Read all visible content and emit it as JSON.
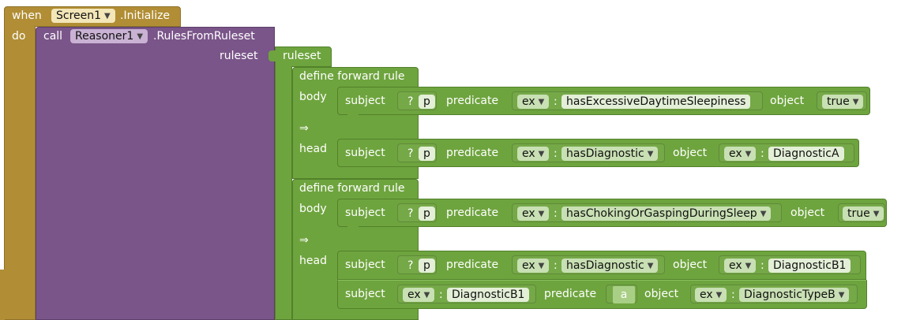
{
  "event": {
    "when_label": "when",
    "component": "Screen1",
    "event_name": ".Initialize",
    "do_label": "do"
  },
  "call": {
    "call_label": "call",
    "component": "Reasoner1",
    "method": ".RulesFromRuleset",
    "arg_label": "ruleset"
  },
  "ruleset": {
    "label": "ruleset"
  },
  "rules": [
    {
      "header": "define forward rule",
      "body_label": "body",
      "arrow": "⇒",
      "head_label": "head",
      "body": [
        {
          "subject_label": "subject",
          "subject_prefix": "?",
          "subject_var": "p",
          "predicate_label": "predicate",
          "pred_ns": "ex",
          "pred_colon": ":",
          "pred_name": "hasExcessiveDaytimeSleepiness",
          "object_label": "object",
          "object_value": "true"
        }
      ],
      "head": [
        {
          "subject_label": "subject",
          "subject_prefix": "?",
          "subject_var": "p",
          "predicate_label": "predicate",
          "pred_ns": "ex",
          "pred_colon": ":",
          "pred_name": "hasDiagnostic",
          "object_label": "object",
          "obj_ns": "ex",
          "obj_colon": ":",
          "obj_name": "DiagnosticA"
        }
      ]
    },
    {
      "header": "define forward rule",
      "body_label": "body",
      "arrow": "⇒",
      "head_label": "head",
      "body": [
        {
          "subject_label": "subject",
          "subject_prefix": "?",
          "subject_var": "p",
          "predicate_label": "predicate",
          "pred_ns": "ex",
          "pred_colon": ":",
          "pred_name": "hasChokingOrGaspingDuringSleep",
          "object_label": "object",
          "object_value": "true"
        }
      ],
      "head": [
        {
          "subject_label": "subject",
          "subject_prefix": "?",
          "subject_var": "p",
          "predicate_label": "predicate",
          "pred_ns": "ex",
          "pred_colon": ":",
          "pred_name": "hasDiagnostic",
          "object_label": "object",
          "obj_ns": "ex",
          "obj_colon": ":",
          "obj_name": "DiagnosticB1"
        },
        {
          "subject_label": "subject",
          "subj_ns": "ex",
          "subj_colon": ":",
          "subj_name": "DiagnosticB1",
          "predicate_label": "predicate",
          "pred_literal": "a",
          "object_label": "object",
          "obj_ns": "ex",
          "obj_colon": ":",
          "obj_name": "DiagnosticTypeB"
        }
      ]
    }
  ],
  "icons": {
    "dropdown": "dropdown-arrow-icon",
    "implies": "implies-arrow-icon"
  },
  "colors": {
    "event_block": "#b18e35",
    "procedure_block": "#7a5589",
    "rule_block": "#6ea43e"
  }
}
